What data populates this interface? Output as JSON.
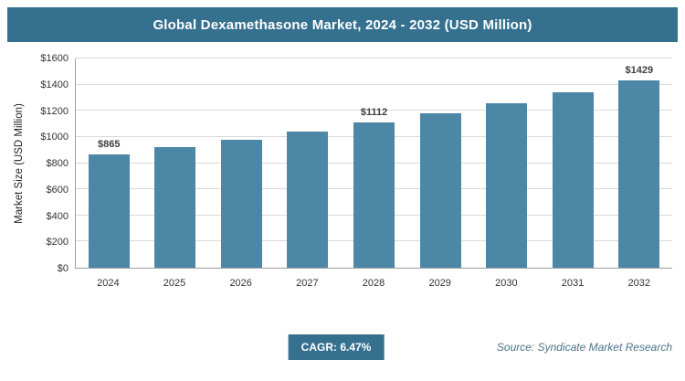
{
  "header": {
    "title": "Global Dexamethasone Market, 2024 - 2032 (USD Million)"
  },
  "chart_data": {
    "type": "bar",
    "title": "Global Dexamethasone Market, 2024 - 2032 (USD Million)",
    "categories": [
      "2024",
      "2025",
      "2026",
      "2027",
      "2028",
      "2029",
      "2030",
      "2031",
      "2032"
    ],
    "values": [
      865,
      921,
      981,
      1044,
      1112,
      1184,
      1261,
      1342,
      1429
    ],
    "data_labels": [
      "$865",
      "",
      "",
      "",
      "$1112",
      "",
      "",
      "",
      "$1429"
    ],
    "xlabel": "",
    "ylabel": "Market Size (USD Million)",
    "ylim": [
      0,
      1600
    ],
    "ytick_step": 200,
    "ytick_labels": [
      "$0",
      "$200",
      "$400",
      "$600",
      "$800",
      "$1000",
      "$1200",
      "$1400",
      "$1600"
    ],
    "grid": true,
    "legend": "none",
    "bar_color": "#4d87a6"
  },
  "footer": {
    "cagr_label": "CAGR: 6.47%",
    "source": "Source: Syndicate Market Research"
  },
  "colors": {
    "header_bg": "#35708e",
    "bar": "#4d87a6",
    "badge_bg": "#35708e",
    "gridline": "#d9d9d9",
    "source_text": "#4a7389"
  }
}
